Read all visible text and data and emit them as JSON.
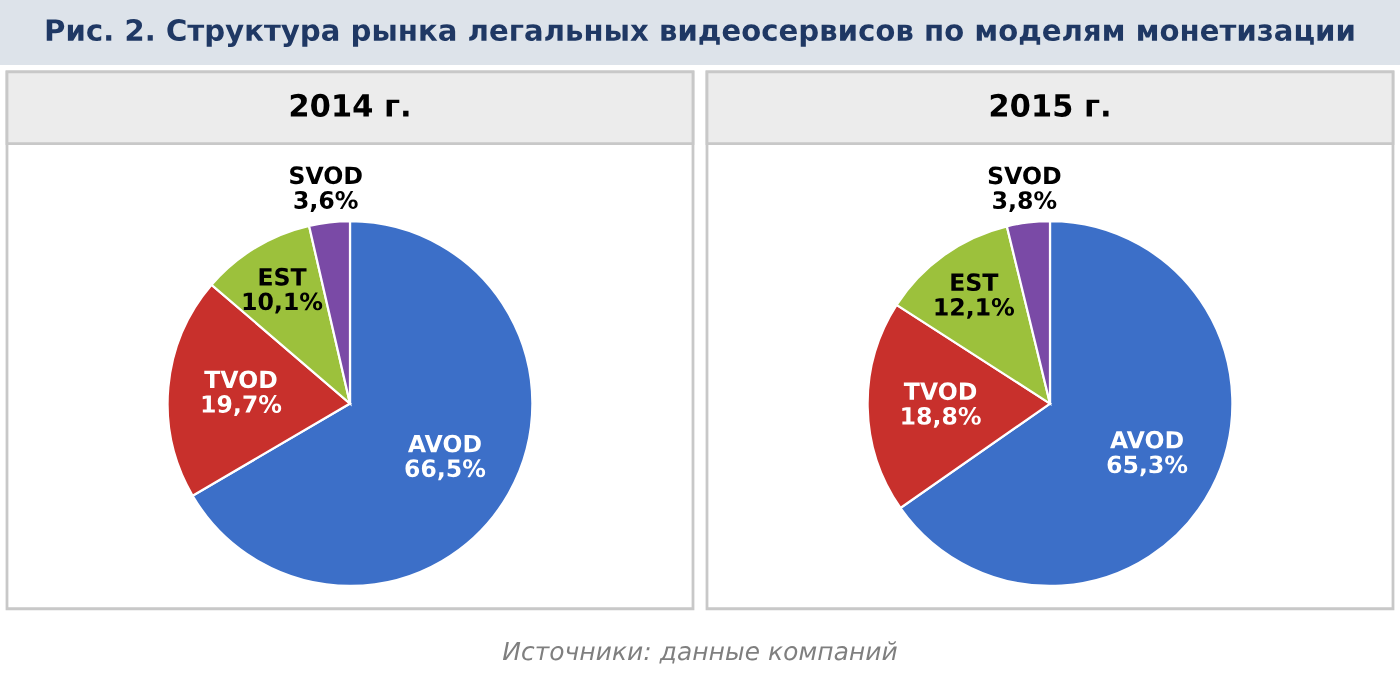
{
  "chart_data": [
    {
      "type": "other",
      "title": "Рис. 2. Структура рынка легальных видеосервисов по моделям монетизации",
      "annotations": [
        "Источники: данные компаний"
      ]
    },
    {
      "type": "pie",
      "title": "2014 г.",
      "categories": [
        "AVOD",
        "TVOD",
        "EST",
        "SVOD"
      ],
      "values": [
        66.5,
        19.7,
        10.1,
        3.6
      ],
      "value_labels": [
        "66,5%",
        "19,7%",
        "10,1%",
        "3,6%"
      ],
      "colors": [
        "#3c6fc8",
        "#c8302c",
        "#9cc13c",
        "#7a4aa6"
      ]
    },
    {
      "type": "pie",
      "title": "2015 г.",
      "categories": [
        "AVOD",
        "TVOD",
        "EST",
        "SVOD"
      ],
      "values": [
        65.3,
        18.8,
        12.1,
        3.8
      ],
      "value_labels": [
        "65,3%",
        "18,8%",
        "12,1%",
        "3,8%"
      ],
      "colors": [
        "#3c6fc8",
        "#c8302c",
        "#9cc13c",
        "#7a4aa6"
      ]
    }
  ]
}
